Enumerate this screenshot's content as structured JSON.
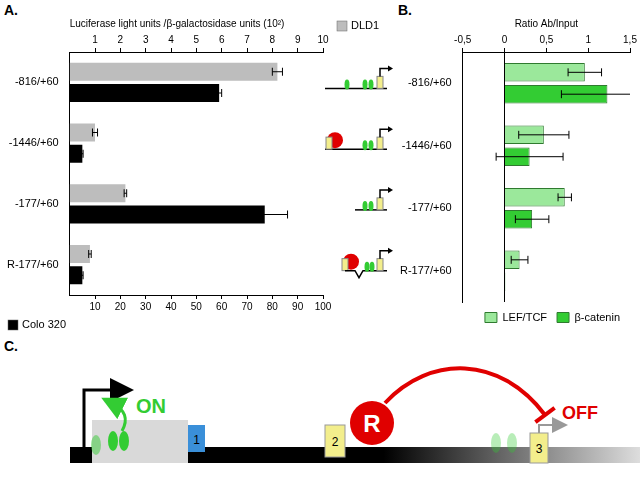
{
  "chart_data": [
    {
      "type": "bar",
      "title": "A.",
      "orientation": "horizontal",
      "y2label": "Luciferase light units /β-galactosidase units (10²)",
      "categories": [
        "-816/+60",
        "-1446/+60",
        "-177/+60",
        "R-177/+60"
      ],
      "series": [
        {
          "name": "DLD1",
          "color": "#bdbdbd",
          "axis": "y2",
          "values": [
            8.2,
            1.0,
            2.2,
            0.8
          ],
          "errors": [
            0.2,
            0.1,
            0.05,
            0.05
          ]
        },
        {
          "name": "Colo 320",
          "color": "#000000",
          "values": [
            59,
            5,
            77,
            5
          ],
          "errors": [
            1,
            0.3,
            9,
            0.3
          ]
        }
      ],
      "ylim": [
        0,
        100
      ],
      "yticks": [
        10,
        20,
        30,
        40,
        50,
        60,
        70,
        80,
        90,
        100
      ],
      "y2lim": [
        0,
        10
      ],
      "y2ticks": [
        1,
        2,
        3,
        4,
        5,
        6,
        7,
        8,
        9,
        10
      ],
      "grid": false
    },
    {
      "type": "bar",
      "title": "B.",
      "orientation": "horizontal",
      "ylabel": "Ratio Ab/Input",
      "categories": [
        "-816/+60",
        "-1446/+60",
        "-177/+60",
        "R-177/+60"
      ],
      "series": [
        {
          "name": "LEF/TCF",
          "color": "#9be89b",
          "values": [
            0.96,
            0.47,
            0.72,
            0.18
          ],
          "errors": [
            0.2,
            0.3,
            0.08,
            0.1
          ]
        },
        {
          "name": "β-catenin",
          "color": "#33cc33",
          "values": [
            1.23,
            0.3,
            0.33,
            0.01
          ],
          "errors": [
            0.55,
            0.4,
            0.2,
            null
          ]
        }
      ],
      "ylim": [
        -0.5,
        1.5
      ],
      "yticks": [
        {
          "value": -0.5,
          "label": "-0,5"
        },
        0,
        {
          "value": 0.5,
          "label": "0,5"
        },
        1,
        {
          "value": 1.5,
          "label": "1,5"
        }
      ],
      "grid": false,
      "legend": "lower right"
    }
  ],
  "diagram": {
    "title": "C.",
    "exons": [
      "1",
      "2",
      "3"
    ],
    "repressor": "R",
    "on": "ON",
    "off": "OFF"
  }
}
